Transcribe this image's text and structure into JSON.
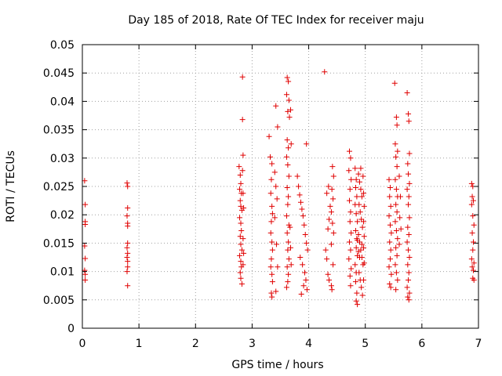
{
  "chart_data": {
    "type": "scatter",
    "title": "Day 185 of 2018, Rate Of TEC Index for receiver maju",
    "xlabel": "GPS time / hours",
    "ylabel": "ROTI / TECUs",
    "xlim": [
      0,
      7
    ],
    "ylim": [
      0,
      0.05
    ],
    "xticks": [
      0,
      1,
      2,
      3,
      4,
      5,
      6,
      7
    ],
    "xtick_labels": [
      "0",
      "1",
      "2",
      "3",
      "4",
      "5",
      "6",
      "7"
    ],
    "yticks": [
      0,
      0.005,
      0.01,
      0.015,
      0.02,
      0.025,
      0.03,
      0.035,
      0.04,
      0.045,
      0.05
    ],
    "ytick_labels": [
      "0",
      "0.005",
      "0.01",
      "0.015",
      "0.02",
      "0.025",
      "0.03",
      "0.035",
      "0.04",
      "0.045",
      "0.05"
    ],
    "grid": true,
    "marker": "+",
    "color": "#e00000",
    "series": [
      {
        "name": "ROTI",
        "points": [
          [
            0.04,
            0.026
          ],
          [
            0.05,
            0.0218
          ],
          [
            0.05,
            0.0188
          ],
          [
            0.05,
            0.0183
          ],
          [
            0.04,
            0.0145
          ],
          [
            0.05,
            0.0123
          ],
          [
            0.04,
            0.0102
          ],
          [
            0.05,
            0.0095
          ],
          [
            0.05,
            0.0085
          ],
          [
            0.79,
            0.0256
          ],
          [
            0.8,
            0.025
          ],
          [
            0.8,
            0.0212
          ],
          [
            0.79,
            0.0198
          ],
          [
            0.8,
            0.0185
          ],
          [
            0.8,
            0.018
          ],
          [
            0.8,
            0.015
          ],
          [
            0.79,
            0.0142
          ],
          [
            0.8,
            0.0132
          ],
          [
            0.79,
            0.0125
          ],
          [
            0.8,
            0.0118
          ],
          [
            0.8,
            0.0108
          ],
          [
            0.79,
            0.01
          ],
          [
            0.8,
            0.0075
          ],
          [
            2.77,
            0.0285
          ],
          [
            2.79,
            0.027
          ],
          [
            2.8,
            0.0255
          ],
          [
            2.78,
            0.0245
          ],
          [
            2.81,
            0.0238
          ],
          [
            2.79,
            0.0225
          ],
          [
            2.8,
            0.0215
          ],
          [
            2.82,
            0.0208
          ],
          [
            2.78,
            0.0195
          ],
          [
            2.8,
            0.0185
          ],
          [
            2.81,
            0.0172
          ],
          [
            2.79,
            0.0162
          ],
          [
            2.8,
            0.0148
          ],
          [
            2.82,
            0.0138
          ],
          [
            2.78,
            0.0128
          ],
          [
            2.8,
            0.0118
          ],
          [
            2.81,
            0.0108
          ],
          [
            2.79,
            0.0098
          ],
          [
            2.8,
            0.0088
          ],
          [
            2.82,
            0.0078
          ],
          [
            2.83,
            0.0443
          ],
          [
            2.83,
            0.0368
          ],
          [
            2.84,
            0.0305
          ],
          [
            2.83,
            0.0278
          ],
          [
            2.84,
            0.0238
          ],
          [
            2.85,
            0.0212
          ],
          [
            2.84,
            0.0158
          ],
          [
            2.85,
            0.0132
          ],
          [
            2.84,
            0.0112
          ],
          [
            3.3,
            0.0338
          ],
          [
            3.32,
            0.0302
          ],
          [
            3.35,
            0.029
          ],
          [
            3.34,
            0.0262
          ],
          [
            3.33,
            0.0238
          ],
          [
            3.35,
            0.0215
          ],
          [
            3.36,
            0.0202
          ],
          [
            3.34,
            0.0188
          ],
          [
            3.33,
            0.0168
          ],
          [
            3.35,
            0.0152
          ],
          [
            3.36,
            0.0138
          ],
          [
            3.34,
            0.0122
          ],
          [
            3.33,
            0.0108
          ],
          [
            3.35,
            0.0095
          ],
          [
            3.36,
            0.0082
          ],
          [
            3.34,
            0.0062
          ],
          [
            3.35,
            0.0055
          ],
          [
            3.42,
            0.0392
          ],
          [
            3.45,
            0.0355
          ],
          [
            3.4,
            0.0275
          ],
          [
            3.42,
            0.025
          ],
          [
            3.44,
            0.0228
          ],
          [
            3.4,
            0.0195
          ],
          [
            3.43,
            0.0148
          ],
          [
            3.45,
            0.0108
          ],
          [
            3.42,
            0.0065
          ],
          [
            3.62,
            0.0442
          ],
          [
            3.64,
            0.0435
          ],
          [
            3.61,
            0.0412
          ],
          [
            3.65,
            0.0402
          ],
          [
            3.63,
            0.0382
          ],
          [
            3.66,
            0.0372
          ],
          [
            3.62,
            0.0332
          ],
          [
            3.64,
            0.0318
          ],
          [
            3.61,
            0.0302
          ],
          [
            3.63,
            0.0288
          ],
          [
            3.65,
            0.0268
          ],
          [
            3.62,
            0.0248
          ],
          [
            3.64,
            0.0232
          ],
          [
            3.63,
            0.0218
          ],
          [
            3.61,
            0.0198
          ],
          [
            3.65,
            0.0182
          ],
          [
            3.62,
            0.0168
          ],
          [
            3.64,
            0.0152
          ],
          [
            3.63,
            0.0138
          ],
          [
            3.65,
            0.0122
          ],
          [
            3.62,
            0.0108
          ],
          [
            3.64,
            0.0095
          ],
          [
            3.63,
            0.0082
          ],
          [
            3.61,
            0.0072
          ],
          [
            3.68,
            0.0385
          ],
          [
            3.69,
            0.0325
          ],
          [
            3.67,
            0.0178
          ],
          [
            3.68,
            0.0142
          ],
          [
            3.69,
            0.0112
          ],
          [
            3.8,
            0.0268
          ],
          [
            3.82,
            0.025
          ],
          [
            3.84,
            0.0235
          ],
          [
            3.86,
            0.0222
          ],
          [
            3.88,
            0.021
          ],
          [
            3.9,
            0.0198
          ],
          [
            3.92,
            0.0182
          ],
          [
            3.94,
            0.0165
          ],
          [
            3.96,
            0.015
          ],
          [
            3.98,
            0.0138
          ],
          [
            3.85,
            0.0125
          ],
          [
            3.89,
            0.0112
          ],
          [
            3.93,
            0.0098
          ],
          [
            3.95,
            0.0085
          ],
          [
            3.91,
            0.0075
          ],
          [
            3.97,
            0.0068
          ],
          [
            3.87,
            0.006
          ],
          [
            3.96,
            0.0325
          ],
          [
            4.28,
            0.0452
          ],
          [
            4.35,
            0.025
          ],
          [
            4.32,
            0.0238
          ],
          [
            4.38,
            0.0215
          ],
          [
            4.36,
            0.0192
          ],
          [
            4.34,
            0.0175
          ],
          [
            4.3,
            0.0138
          ],
          [
            4.32,
            0.0122
          ],
          [
            4.34,
            0.0095
          ],
          [
            4.36,
            0.0085
          ],
          [
            4.4,
            0.0075
          ],
          [
            4.42,
            0.0285
          ],
          [
            4.44,
            0.0268
          ],
          [
            4.41,
            0.0245
          ],
          [
            4.43,
            0.0228
          ],
          [
            4.4,
            0.0205
          ],
          [
            4.42,
            0.0185
          ],
          [
            4.44,
            0.0168
          ],
          [
            4.4,
            0.0148
          ],
          [
            4.43,
            0.0112
          ],
          [
            4.41,
            0.0068
          ],
          [
            4.72,
            0.0312
          ],
          [
            4.74,
            0.03
          ],
          [
            4.71,
            0.0278
          ],
          [
            4.75,
            0.0262
          ],
          [
            4.73,
            0.0245
          ],
          [
            4.72,
            0.0225
          ],
          [
            4.74,
            0.0205
          ],
          [
            4.73,
            0.0188
          ],
          [
            4.75,
            0.0168
          ],
          [
            4.72,
            0.0152
          ],
          [
            4.74,
            0.0138
          ],
          [
            4.71,
            0.0122
          ],
          [
            4.75,
            0.0105
          ],
          [
            4.73,
            0.0092
          ],
          [
            4.74,
            0.0075
          ],
          [
            4.82,
            0.0282
          ],
          [
            4.84,
            0.0262
          ],
          [
            4.83,
            0.0248
          ],
          [
            4.85,
            0.0232
          ],
          [
            4.82,
            0.0218
          ],
          [
            4.84,
            0.0202
          ],
          [
            4.86,
            0.0188
          ],
          [
            4.83,
            0.0172
          ],
          [
            4.85,
            0.0158
          ],
          [
            4.84,
            0.0142
          ],
          [
            4.86,
            0.0128
          ],
          [
            4.82,
            0.0112
          ],
          [
            4.84,
            0.0098
          ],
          [
            4.83,
            0.0082
          ],
          [
            4.85,
            0.0062
          ],
          [
            4.84,
            0.0048
          ],
          [
            4.86,
            0.0042
          ],
          [
            4.88,
            0.0272
          ],
          [
            4.9,
            0.0258
          ],
          [
            4.92,
            0.0245
          ],
          [
            4.94,
            0.0232
          ],
          [
            4.89,
            0.0218
          ],
          [
            4.91,
            0.0205
          ],
          [
            4.93,
            0.0192
          ],
          [
            4.95,
            0.0178
          ],
          [
            4.88,
            0.0165
          ],
          [
            4.9,
            0.0152
          ],
          [
            4.92,
            0.0138
          ],
          [
            4.94,
            0.0125
          ],
          [
            4.96,
            0.0112
          ],
          [
            4.89,
            0.0098
          ],
          [
            4.91,
            0.0085
          ],
          [
            4.93,
            0.0072
          ],
          [
            4.95,
            0.0058
          ],
          [
            4.97,
            0.0238
          ],
          [
            4.98,
            0.0215
          ],
          [
            4.97,
            0.0188
          ],
          [
            4.98,
            0.0162
          ],
          [
            4.97,
            0.0142
          ],
          [
            4.98,
            0.0115
          ],
          [
            4.97,
            0.0085
          ],
          [
            4.96,
            0.0268
          ],
          [
            4.92,
            0.0282
          ],
          [
            4.94,
            0.0148
          ],
          [
            4.9,
            0.0125
          ],
          [
            4.88,
            0.0135
          ],
          [
            4.86,
            0.0155
          ],
          [
            5.42,
            0.0262
          ],
          [
            5.44,
            0.0248
          ],
          [
            5.43,
            0.0232
          ],
          [
            5.45,
            0.0215
          ],
          [
            5.42,
            0.0198
          ],
          [
            5.44,
            0.0182
          ],
          [
            5.46,
            0.0168
          ],
          [
            5.43,
            0.0152
          ],
          [
            5.45,
            0.0138
          ],
          [
            5.44,
            0.0122
          ],
          [
            5.42,
            0.0108
          ],
          [
            5.46,
            0.0095
          ],
          [
            5.43,
            0.0078
          ],
          [
            5.45,
            0.0072
          ],
          [
            5.52,
            0.0432
          ],
          [
            5.55,
            0.0372
          ],
          [
            5.56,
            0.0358
          ],
          [
            5.53,
            0.0325
          ],
          [
            5.57,
            0.0312
          ],
          [
            5.54,
            0.0302
          ],
          [
            5.56,
            0.0285
          ],
          [
            5.53,
            0.0262
          ],
          [
            5.55,
            0.0245
          ],
          [
            5.57,
            0.0232
          ],
          [
            5.54,
            0.0218
          ],
          [
            5.56,
            0.0205
          ],
          [
            5.53,
            0.0188
          ],
          [
            5.55,
            0.0172
          ],
          [
            5.57,
            0.0158
          ],
          [
            5.54,
            0.0142
          ],
          [
            5.56,
            0.0128
          ],
          [
            5.53,
            0.0112
          ],
          [
            5.55,
            0.0098
          ],
          [
            5.57,
            0.0085
          ],
          [
            5.54,
            0.0068
          ],
          [
            5.6,
            0.0268
          ],
          [
            5.62,
            0.0232
          ],
          [
            5.61,
            0.0195
          ],
          [
            5.63,
            0.0175
          ],
          [
            5.6,
            0.0148
          ],
          [
            5.74,
            0.0415
          ],
          [
            5.76,
            0.0378
          ],
          [
            5.77,
            0.0365
          ],
          [
            5.78,
            0.0308
          ],
          [
            5.75,
            0.029
          ],
          [
            5.76,
            0.0272
          ],
          [
            5.78,
            0.0255
          ],
          [
            5.74,
            0.0245
          ],
          [
            5.77,
            0.0232
          ],
          [
            5.76,
            0.0218
          ],
          [
            5.78,
            0.0195
          ],
          [
            5.75,
            0.0178
          ],
          [
            5.77,
            0.0165
          ],
          [
            5.74,
            0.0152
          ],
          [
            5.76,
            0.0138
          ],
          [
            5.78,
            0.0125
          ],
          [
            5.75,
            0.0112
          ],
          [
            5.77,
            0.0098
          ],
          [
            5.76,
            0.0085
          ],
          [
            5.74,
            0.0072
          ],
          [
            5.78,
            0.0062
          ],
          [
            5.75,
            0.0055
          ],
          [
            5.77,
            0.005
          ],
          [
            6.88,
            0.0255
          ],
          [
            6.9,
            0.025
          ],
          [
            6.89,
            0.0232
          ],
          [
            6.91,
            0.0225
          ],
          [
            6.88,
            0.0218
          ],
          [
            6.9,
            0.0198
          ],
          [
            6.92,
            0.0182
          ],
          [
            6.89,
            0.0168
          ],
          [
            6.91,
            0.0152
          ],
          [
            6.9,
            0.0138
          ],
          [
            6.88,
            0.0122
          ],
          [
            6.92,
            0.0115
          ],
          [
            6.89,
            0.0108
          ],
          [
            6.91,
            0.0102
          ],
          [
            6.9,
            0.0088
          ],
          [
            6.92,
            0.0085
          ]
        ]
      }
    ]
  }
}
